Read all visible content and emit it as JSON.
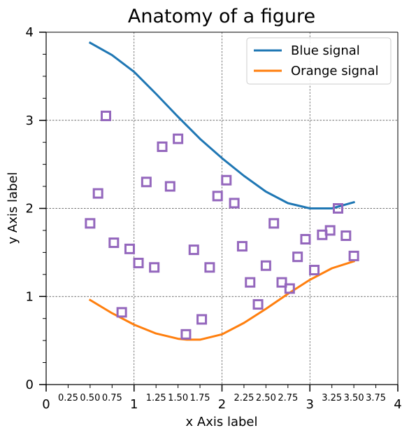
{
  "chart_data": {
    "type": "line",
    "title": "Anatomy of a figure",
    "xlabel": "x Axis label",
    "ylabel": "y Axis label",
    "xlim": [
      0,
      4
    ],
    "ylim": [
      0,
      4
    ],
    "x_major_ticks": [
      0,
      1,
      2,
      3,
      4
    ],
    "x_major_tick_labels": [
      "0",
      "1",
      "2",
      "3",
      "4"
    ],
    "x_minor_ticks": [
      0.25,
      0.5,
      0.75,
      1.25,
      1.5,
      1.75,
      2.25,
      2.5,
      2.75,
      3.25,
      3.5,
      3.75
    ],
    "x_minor_tick_labels": [
      "0.25",
      "0.50",
      "0.75",
      "1.25",
      "1.50",
      "1.75",
      "2.25",
      "2.50",
      "2.75",
      "3.25",
      "3.50",
      "3.75"
    ],
    "y_major_ticks": [
      0,
      1,
      2,
      3,
      4
    ],
    "y_major_tick_labels": [
      "0",
      "1",
      "2",
      "3",
      "4"
    ],
    "y_minor_ticks": [
      0.25,
      0.5,
      0.75,
      1.25,
      1.5,
      1.75,
      2.25,
      2.5,
      2.75,
      3.25,
      3.5,
      3.75
    ],
    "grid": true,
    "legend_position": "upper right",
    "series": [
      {
        "name": "Blue signal",
        "type": "line",
        "color": "#1f77b4",
        "x": [
          0.5,
          0.75,
          1.0,
          1.25,
          1.5,
          1.75,
          2.0,
          2.25,
          2.5,
          2.75,
          3.0,
          3.25,
          3.5
        ],
        "y": [
          3.88,
          3.74,
          3.55,
          3.3,
          3.04,
          2.79,
          2.57,
          2.37,
          2.19,
          2.06,
          2.0,
          2.0,
          2.07
        ]
      },
      {
        "name": "Orange signal",
        "type": "line",
        "color": "#ff7f0e",
        "x": [
          0.5,
          0.75,
          1.0,
          1.25,
          1.5,
          1.6,
          1.75,
          2.0,
          2.25,
          2.5,
          2.75,
          3.0,
          3.25,
          3.5
        ],
        "y": [
          0.96,
          0.81,
          0.68,
          0.58,
          0.52,
          0.51,
          0.51,
          0.57,
          0.7,
          0.86,
          1.03,
          1.19,
          1.32,
          1.4
        ]
      },
      {
        "type": "scatter",
        "marker": "square",
        "color": "#9467bd",
        "x": [
          0.5,
          0.59,
          0.68,
          0.77,
          0.86,
          0.95,
          1.05,
          1.14,
          1.23,
          1.32,
          1.41,
          1.5,
          1.59,
          1.68,
          1.77,
          1.86,
          1.95,
          2.05,
          2.14,
          2.23,
          2.32,
          2.41,
          2.5,
          2.59,
          2.68,
          2.77,
          2.86,
          2.95,
          3.05,
          3.14,
          3.23,
          3.32,
          3.41,
          3.5
        ],
        "y": [
          1.83,
          2.17,
          3.05,
          1.61,
          0.82,
          1.54,
          1.38,
          2.3,
          1.33,
          2.7,
          2.25,
          2.79,
          0.57,
          1.53,
          0.74,
          1.33,
          2.14,
          2.32,
          2.06,
          1.57,
          1.16,
          0.91,
          1.35,
          1.83,
          1.16,
          1.09,
          1.45,
          1.65,
          1.3,
          1.7,
          1.75,
          2.0,
          1.69,
          1.46
        ]
      }
    ]
  }
}
